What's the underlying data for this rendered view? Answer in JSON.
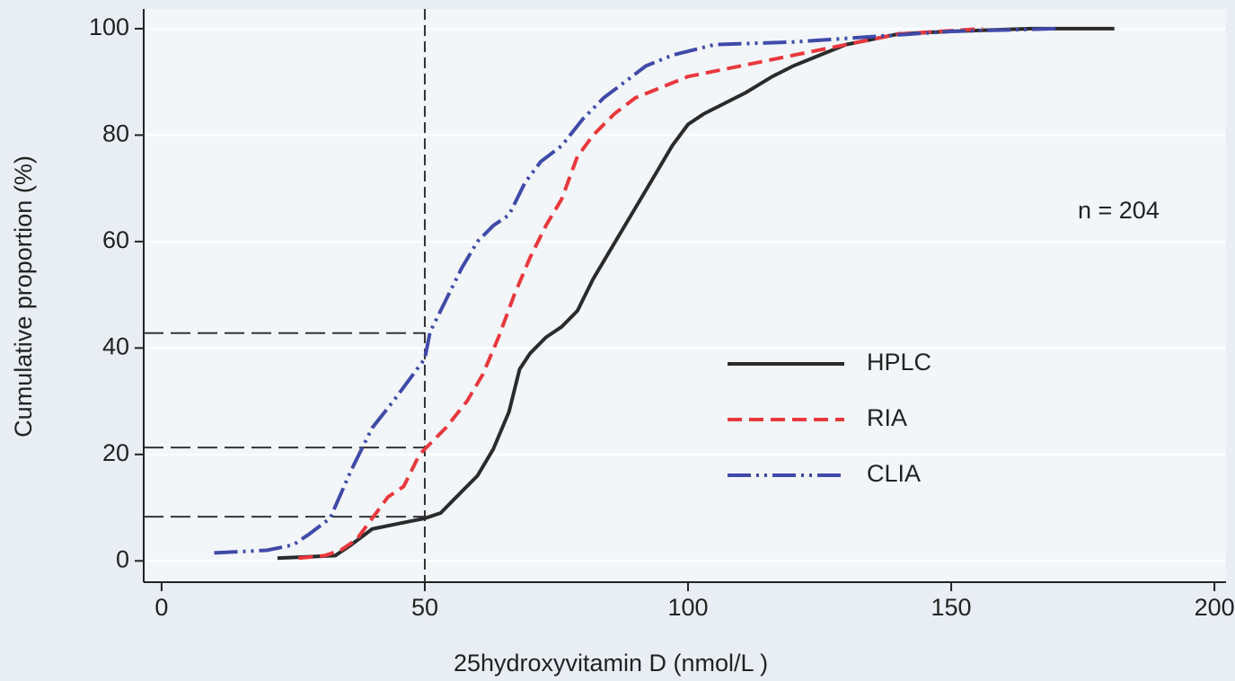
{
  "chart_data": {
    "type": "line",
    "x_label": "25hydroxyvitamin D (nmol/L )",
    "y_label": "Cumulative proportion (%)",
    "annotation": "n = 204",
    "xlim": [
      -3.4,
      202.2
    ],
    "ylim": [
      -4,
      103.7
    ],
    "xticks": [
      0,
      50,
      100,
      150,
      200
    ],
    "yticks": [
      0,
      20,
      40,
      60,
      80,
      100
    ],
    "grid": true,
    "legend": "lower right",
    "reference_lines": {
      "x": [
        50
      ],
      "y": [
        42.8,
        21.3,
        8.3
      ]
    },
    "series": [
      {
        "name": "HPLC",
        "color": "#2b2b2b",
        "style": "solid",
        "x": [
          22,
          33,
          36,
          40,
          45,
          50,
          53,
          56,
          60,
          63,
          66,
          68,
          70,
          73,
          76,
          79,
          82,
          85,
          88,
          91,
          94,
          97,
          100,
          103,
          107,
          111,
          116,
          120,
          125,
          130,
          135,
          140,
          150,
          165,
          181
        ],
        "values": [
          0.5,
          1,
          3,
          6,
          7,
          8,
          9,
          12,
          16,
          21,
          28,
          36,
          39,
          42,
          44,
          47,
          53,
          58,
          63,
          68,
          73,
          78,
          82,
          84,
          86,
          88,
          91,
          93,
          95,
          97,
          98,
          99,
          99.5,
          100,
          100
        ]
      },
      {
        "name": "RIA",
        "color": "#e8383d",
        "style": "dash",
        "x": [
          26,
          31,
          34,
          37,
          40,
          43,
          46,
          49,
          51,
          54,
          58,
          61,
          64,
          67,
          70,
          73,
          76,
          79,
          82,
          86,
          90,
          95,
          100,
          110,
          120,
          130,
          140,
          156
        ],
        "values": [
          0.5,
          1,
          2,
          4,
          8,
          12,
          14,
          20,
          22,
          25,
          30,
          35,
          42,
          50,
          57,
          63,
          68,
          76,
          80,
          84,
          87,
          89,
          91,
          93,
          95,
          97,
          99,
          100
        ]
      },
      {
        "name": "CLIA",
        "color": "#3f4aa8",
        "style": "dash-dot-dot",
        "x": [
          10,
          20,
          25,
          28,
          32,
          36,
          40,
          44,
          47,
          50,
          51,
          54,
          57,
          60,
          63,
          66,
          69,
          72,
          76,
          80,
          84,
          88,
          92,
          97,
          105,
          120,
          135,
          150,
          170
        ],
        "values": [
          1.5,
          2,
          3,
          5,
          8,
          17,
          25,
          30,
          34,
          38,
          43,
          49,
          55,
          60,
          63,
          65,
          71,
          75,
          78,
          83,
          87,
          90,
          93,
          95,
          97,
          97.5,
          98.5,
          99.5,
          100
        ]
      }
    ]
  }
}
